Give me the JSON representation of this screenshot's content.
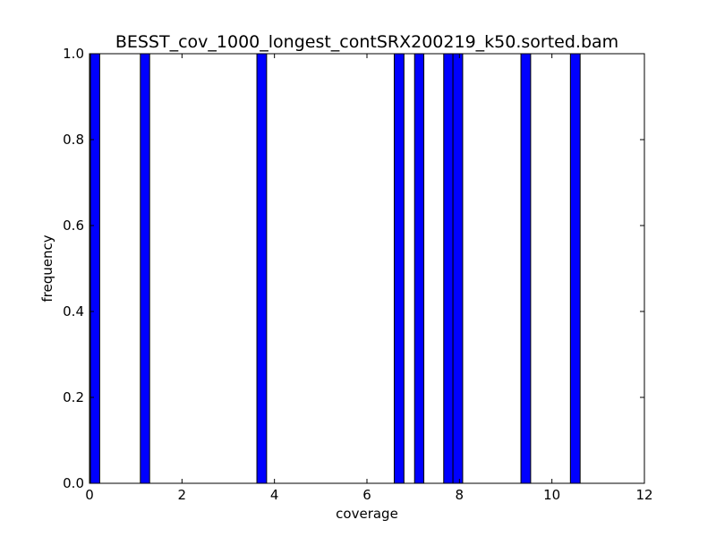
{
  "chart_data": {
    "type": "bar",
    "title": "BESST_cov_1000_longest_contSRX200219_k50.sorted.bam",
    "xlabel": "coverage",
    "ylabel": "frequency",
    "xlim": [
      0,
      12
    ],
    "ylim": [
      0,
      1.0
    ],
    "xticks": [
      "0",
      "2",
      "4",
      "6",
      "8",
      "10",
      "12"
    ],
    "yticks": [
      "0.0",
      "0.2",
      "0.4",
      "0.6",
      "0.8",
      "1.0"
    ],
    "bar_color": "#0000ff",
    "bars": [
      {
        "x_start": 0.02,
        "x_end": 0.22,
        "value": 1.0
      },
      {
        "x_start": 1.1,
        "x_end": 1.3,
        "value": 1.0
      },
      {
        "x_start": 3.62,
        "x_end": 3.83,
        "value": 1.0
      },
      {
        "x_start": 6.59,
        "x_end": 6.8,
        "value": 1.0
      },
      {
        "x_start": 7.03,
        "x_end": 7.23,
        "value": 1.0
      },
      {
        "x_start": 7.66,
        "x_end": 7.86,
        "value": 1.0
      },
      {
        "x_start": 7.86,
        "x_end": 8.07,
        "value": 1.0
      },
      {
        "x_start": 9.33,
        "x_end": 9.54,
        "value": 1.0
      },
      {
        "x_start": 10.4,
        "x_end": 10.61,
        "value": 1.0
      }
    ],
    "grid": false,
    "legend": "none"
  }
}
